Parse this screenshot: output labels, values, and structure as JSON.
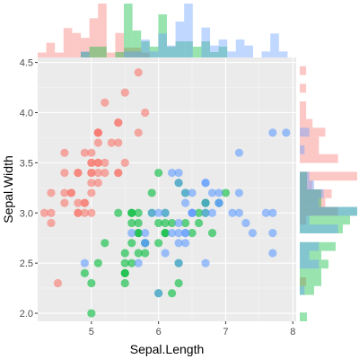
{
  "chart_data": {
    "type": "scatter",
    "title": "",
    "xlabel": "Sepal.Length",
    "ylabel": "Sepal.Width",
    "xlim": [
      4.2,
      8.05
    ],
    "ylim": [
      1.92,
      4.55
    ],
    "x_ticks": [
      "5",
      "6",
      "7",
      "8"
    ],
    "x_tick_values": [
      5,
      6,
      7,
      8
    ],
    "y_ticks": [
      "2.0",
      "2.5",
      "3.0",
      "3.5",
      "4.0",
      "4.5"
    ],
    "y_tick_values": [
      2.0,
      2.5,
      3.0,
      3.5,
      4.0,
      4.5
    ],
    "grid": true,
    "legend": "none",
    "marginals": {
      "top": "histogram of Sepal.Length per group",
      "right": "histogram of Sepal.Width per group"
    },
    "series": [
      {
        "color": "#F8766D",
        "points": [
          [
            5.1,
            3.5
          ],
          [
            4.9,
            3.0
          ],
          [
            4.7,
            3.2
          ],
          [
            4.6,
            3.1
          ],
          [
            5.0,
            3.6
          ],
          [
            5.4,
            3.9
          ],
          [
            4.6,
            3.4
          ],
          [
            5.0,
            3.4
          ],
          [
            4.4,
            2.9
          ],
          [
            4.9,
            3.1
          ],
          [
            5.4,
            3.7
          ],
          [
            4.8,
            3.4
          ],
          [
            4.8,
            3.0
          ],
          [
            4.3,
            3.0
          ],
          [
            5.8,
            4.0
          ],
          [
            5.7,
            4.4
          ],
          [
            5.4,
            3.9
          ],
          [
            5.1,
            3.5
          ],
          [
            5.7,
            3.8
          ],
          [
            5.1,
            3.8
          ],
          [
            5.4,
            3.4
          ],
          [
            5.1,
            3.7
          ],
          [
            4.6,
            3.6
          ],
          [
            5.1,
            3.3
          ],
          [
            4.8,
            3.4
          ],
          [
            5.0,
            3.0
          ],
          [
            5.0,
            3.4
          ],
          [
            5.2,
            3.5
          ],
          [
            5.2,
            3.4
          ],
          [
            4.7,
            3.2
          ],
          [
            4.8,
            3.1
          ],
          [
            5.4,
            3.4
          ],
          [
            5.2,
            4.1
          ],
          [
            5.5,
            4.2
          ],
          [
            4.9,
            3.1
          ],
          [
            5.0,
            3.2
          ],
          [
            5.5,
            3.5
          ],
          [
            4.9,
            3.6
          ],
          [
            4.4,
            3.0
          ],
          [
            5.1,
            3.4
          ],
          [
            5.0,
            3.5
          ],
          [
            4.5,
            2.3
          ],
          [
            4.4,
            3.2
          ],
          [
            5.0,
            3.5
          ],
          [
            5.1,
            3.8
          ],
          [
            4.8,
            3.0
          ],
          [
            5.1,
            3.8
          ],
          [
            4.6,
            3.2
          ],
          [
            5.3,
            3.7
          ],
          [
            5.0,
            3.3
          ]
        ]
      },
      {
        "color": "#00BA38",
        "points": [
          [
            7.0,
            3.2
          ],
          [
            6.4,
            3.2
          ],
          [
            6.9,
            3.1
          ],
          [
            5.5,
            2.3
          ],
          [
            6.5,
            2.8
          ],
          [
            5.7,
            2.8
          ],
          [
            6.3,
            3.3
          ],
          [
            4.9,
            2.4
          ],
          [
            6.6,
            2.9
          ],
          [
            5.2,
            2.7
          ],
          [
            5.0,
            2.0
          ],
          [
            5.9,
            3.0
          ],
          [
            6.0,
            2.2
          ],
          [
            6.1,
            2.9
          ],
          [
            5.6,
            2.9
          ],
          [
            6.7,
            3.1
          ],
          [
            5.6,
            3.0
          ],
          [
            5.8,
            2.7
          ],
          [
            6.2,
            2.2
          ],
          [
            5.6,
            2.5
          ],
          [
            5.9,
            3.2
          ],
          [
            6.1,
            2.8
          ],
          [
            6.3,
            2.5
          ],
          [
            6.1,
            2.8
          ],
          [
            6.4,
            2.9
          ],
          [
            6.6,
            3.0
          ],
          [
            6.8,
            2.8
          ],
          [
            6.7,
            3.0
          ],
          [
            6.0,
            2.9
          ],
          [
            5.7,
            2.6
          ],
          [
            5.5,
            2.4
          ],
          [
            5.5,
            2.4
          ],
          [
            5.8,
            2.7
          ],
          [
            6.0,
            2.7
          ],
          [
            5.4,
            3.0
          ],
          [
            6.0,
            3.4
          ],
          [
            6.7,
            3.1
          ],
          [
            6.3,
            2.3
          ],
          [
            5.6,
            3.0
          ],
          [
            5.5,
            2.5
          ],
          [
            5.5,
            2.6
          ],
          [
            6.1,
            3.0
          ],
          [
            5.8,
            2.6
          ],
          [
            5.0,
            2.3
          ],
          [
            5.6,
            2.7
          ],
          [
            5.7,
            3.0
          ],
          [
            5.7,
            2.9
          ],
          [
            6.2,
            2.9
          ],
          [
            5.1,
            2.5
          ],
          [
            5.7,
            2.8
          ]
        ]
      },
      {
        "color": "#619CFF",
        "points": [
          [
            6.3,
            3.3
          ],
          [
            5.8,
            2.7
          ],
          [
            7.1,
            3.0
          ],
          [
            6.3,
            2.9
          ],
          [
            6.5,
            3.0
          ],
          [
            7.6,
            3.0
          ],
          [
            4.9,
            2.5
          ],
          [
            7.3,
            2.9
          ],
          [
            6.7,
            2.5
          ],
          [
            7.2,
            3.6
          ],
          [
            6.5,
            3.2
          ],
          [
            6.4,
            2.7
          ],
          [
            6.8,
            3.0
          ],
          [
            5.7,
            2.5
          ],
          [
            5.8,
            2.8
          ],
          [
            6.4,
            3.2
          ],
          [
            6.5,
            3.0
          ],
          [
            7.7,
            3.8
          ],
          [
            7.7,
            2.6
          ],
          [
            6.0,
            2.2
          ],
          [
            6.9,
            3.2
          ],
          [
            5.6,
            2.8
          ],
          [
            7.7,
            2.8
          ],
          [
            6.3,
            2.7
          ],
          [
            6.7,
            3.3
          ],
          [
            7.2,
            3.2
          ],
          [
            6.2,
            2.8
          ],
          [
            6.1,
            3.0
          ],
          [
            6.4,
            2.8
          ],
          [
            7.2,
            3.0
          ],
          [
            7.4,
            2.8
          ],
          [
            7.9,
            3.8
          ],
          [
            6.4,
            2.8
          ],
          [
            6.3,
            2.8
          ],
          [
            6.1,
            2.6
          ],
          [
            7.7,
            3.0
          ],
          [
            6.3,
            3.4
          ],
          [
            6.4,
            3.1
          ],
          [
            6.0,
            3.0
          ],
          [
            6.9,
            3.1
          ],
          [
            6.7,
            3.1
          ],
          [
            6.9,
            3.1
          ],
          [
            5.8,
            2.7
          ],
          [
            6.8,
            3.2
          ],
          [
            6.7,
            3.3
          ],
          [
            6.7,
            3.0
          ],
          [
            6.3,
            2.5
          ],
          [
            6.5,
            3.0
          ],
          [
            6.2,
            3.4
          ],
          [
            5.9,
            3.0
          ]
        ]
      }
    ]
  }
}
